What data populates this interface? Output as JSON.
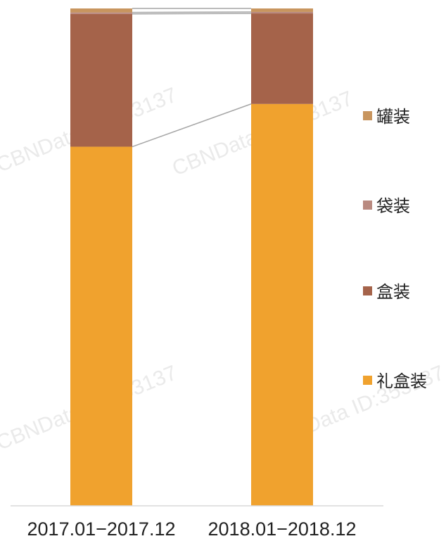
{
  "chart_data": {
    "type": "bar",
    "stacked": true,
    "percent_stacked": true,
    "categories": [
      "2017.01−2017.12",
      "2018.01−2018.12"
    ],
    "series": [
      {
        "name": "礼盒装",
        "color": "#f0a22e",
        "values": [
          72.2,
          80.8
        ]
      },
      {
        "name": "盒装",
        "color": "#a5634a",
        "values": [
          26.7,
          18.2
        ]
      },
      {
        "name": "袋装",
        "color": "#b98a80",
        "values": [
          0.3,
          0.3
        ]
      },
      {
        "name": "罐装",
        "color": "#c8955e",
        "values": [
          0.8,
          0.7
        ]
      }
    ],
    "ylim": [
      0,
      100
    ],
    "legend_position": "right",
    "connector_lines": true,
    "grid": false
  },
  "watermark": "CBNData ID:353137"
}
